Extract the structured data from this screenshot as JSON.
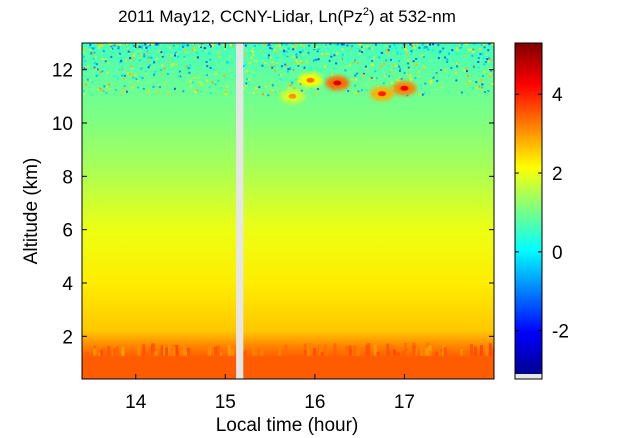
{
  "chart_data": {
    "type": "heatmap",
    "title_main": "2011 May12, CCNY-Lidar, Ln(Pz",
    "title_sup": "2",
    "title_tail": ") at 532-nm",
    "xlabel": "Local time (hour)",
    "ylabel": "Altitude (km)",
    "xlim": [
      13.4,
      18.0
    ],
    "ylim": [
      0.4,
      13.0
    ],
    "x_ticks": [
      14,
      15,
      16,
      17
    ],
    "x_tick_labels": [
      "14",
      "15",
      "16",
      "17"
    ],
    "y_ticks": [
      2,
      4,
      6,
      8,
      10,
      12
    ],
    "y_tick_labels": [
      "2",
      "4",
      "6",
      "8",
      "10",
      "12"
    ],
    "colorbar": {
      "range": [
        -3.1,
        5.3
      ],
      "ticks": [
        -2,
        0,
        2,
        4
      ],
      "tick_labels": [
        "-2",
        "0",
        "2",
        "4"
      ],
      "colormap": "jet"
    },
    "data_gap": {
      "x_start": 15.12,
      "x_end": 15.2
    },
    "altitude_profile": [
      {
        "altitude_km": 0.4,
        "value": 3.5
      },
      {
        "altitude_km": 1.2,
        "value": 3.5
      },
      {
        "altitude_km": 1.6,
        "value": 3.2
      },
      {
        "altitude_km": 2.2,
        "value": 2.6
      },
      {
        "altitude_km": 4.0,
        "value": 2.3
      },
      {
        "altitude_km": 6.0,
        "value": 2.0
      },
      {
        "altitude_km": 8.0,
        "value": 1.5
      },
      {
        "altitude_km": 10.0,
        "value": 1.1
      },
      {
        "altitude_km": 11.5,
        "value": 0.9
      },
      {
        "altitude_km": 13.0,
        "value": 0.6
      }
    ],
    "boundary_layer_top_km": 1.5,
    "noise_above_km": 11.5,
    "cloud_features": [
      {
        "x": 16.25,
        "altitude_km": 11.5,
        "value": 4.6
      },
      {
        "x": 16.75,
        "altitude_km": 11.1,
        "value": 4.0
      },
      {
        "x": 17.0,
        "altitude_km": 11.3,
        "value": 4.4
      },
      {
        "x": 15.95,
        "altitude_km": 11.6,
        "value": 3.3
      },
      {
        "x": 15.75,
        "altitude_km": 11.0,
        "value": 3.0
      }
    ],
    "colors": {
      "gap": "#e6e6e6",
      "colorbar_under": "#e6e6e6"
    }
  }
}
